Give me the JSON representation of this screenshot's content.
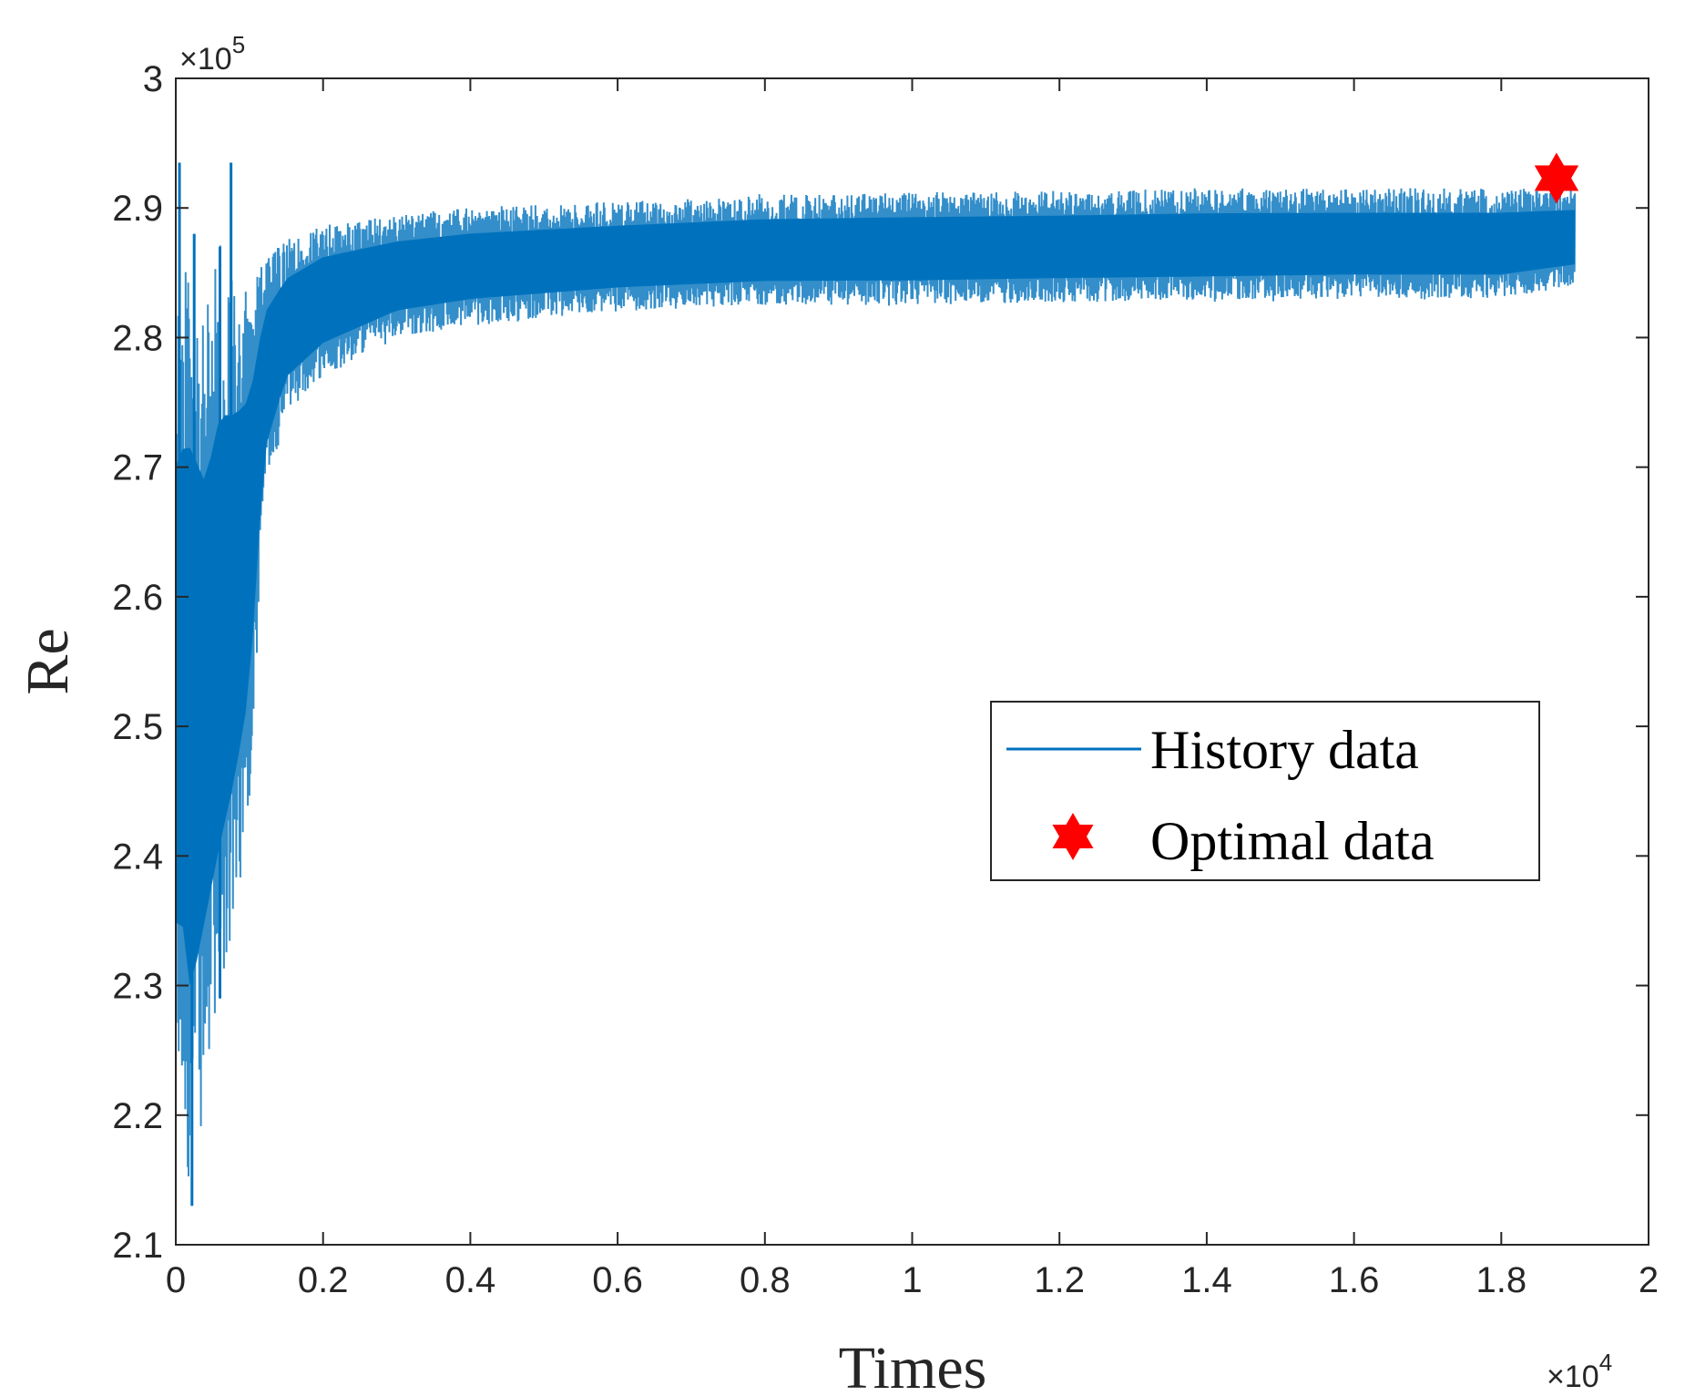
{
  "chart_data": {
    "type": "line",
    "xlabel": "Times",
    "ylabel": "Re",
    "x_multiplier_label": {
      "prefix": "×10",
      "exponent": "4"
    },
    "y_multiplier_label": {
      "prefix": "×10",
      "exponent": "5"
    },
    "xlim": [
      0,
      2
    ],
    "ylim": [
      2.1,
      3.0
    ],
    "x_ticks": [
      "0",
      "0.2",
      "0.4",
      "0.6",
      "0.8",
      "1",
      "1.2",
      "1.4",
      "1.6",
      "1.8",
      "2"
    ],
    "y_ticks": [
      "2.1",
      "2.2",
      "2.3",
      "2.4",
      "2.5",
      "2.6",
      "2.7",
      "2.8",
      "2.9",
      "3"
    ],
    "grid": false,
    "legend_position": "center-right",
    "series": [
      {
        "name": "History data",
        "style": "line",
        "color": "#0072BD",
        "band": {
          "x": [
            0.0,
            0.01,
            0.02,
            0.04,
            0.06,
            0.08,
            0.1,
            0.12,
            0.15,
            0.2,
            0.3,
            0.4,
            0.6,
            0.8,
            1.0,
            1.2,
            1.4,
            1.6,
            1.8,
            1.9
          ],
          "upper": [
            2.84,
            2.86,
            2.88,
            2.82,
            2.87,
            2.85,
            2.84,
            2.86,
            2.875,
            2.888,
            2.895,
            2.9,
            2.905,
            2.91,
            2.912,
            2.913,
            2.915,
            2.915,
            2.915,
            2.915
          ],
          "lower": [
            2.21,
            2.2,
            2.13,
            2.22,
            2.28,
            2.35,
            2.44,
            2.67,
            2.74,
            2.77,
            2.8,
            2.81,
            2.82,
            2.825,
            2.825,
            2.827,
            2.828,
            2.83,
            2.83,
            2.84
          ]
        },
        "spikes": [
          {
            "x": 0.005,
            "y": 2.935
          },
          {
            "x": 0.025,
            "y": 2.88
          },
          {
            "x": 0.06,
            "y": 2.87
          },
          {
            "x": 0.075,
            "y": 2.935
          },
          {
            "x": 0.022,
            "y": 2.13
          },
          {
            "x": 0.06,
            "y": 2.29
          }
        ]
      },
      {
        "name": "Optimal data",
        "style": "marker",
        "marker": "hexagram",
        "color": "#FF0000",
        "points": [
          {
            "x": 1.875,
            "y": 2.923
          }
        ]
      }
    ]
  }
}
